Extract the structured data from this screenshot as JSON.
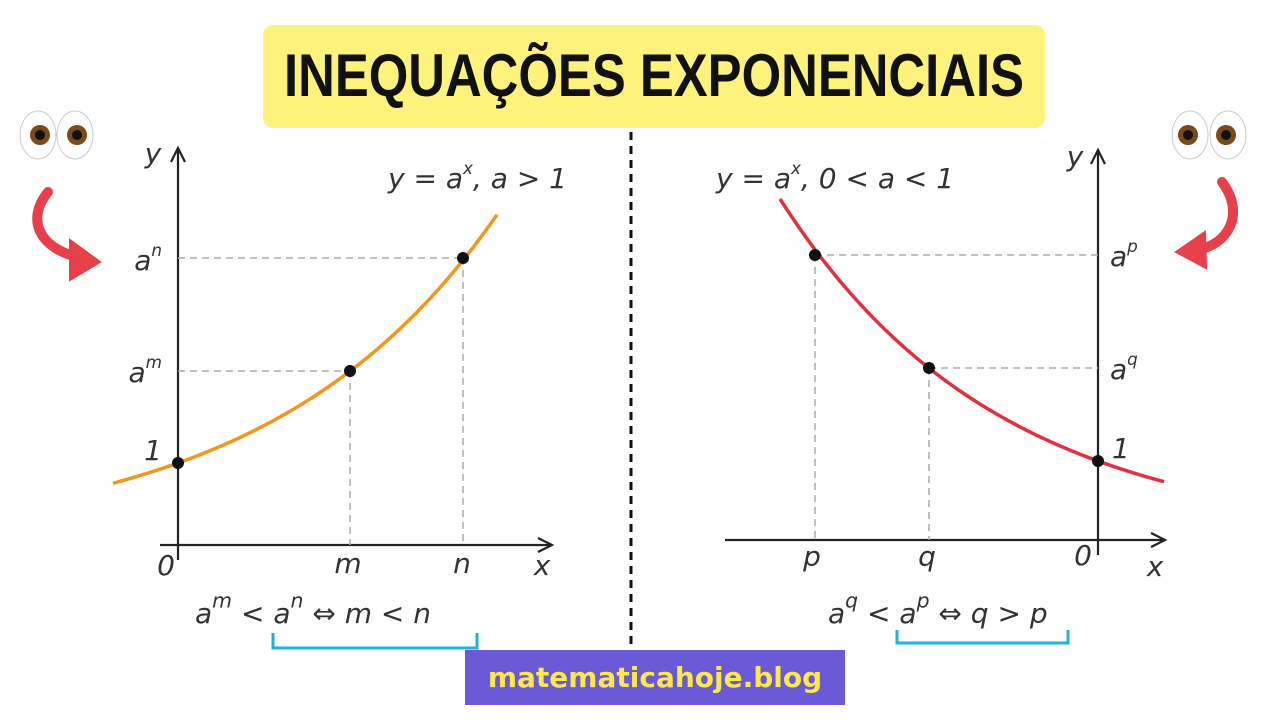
{
  "title": "INEQUAÇÕES EXPONENCIAIS",
  "left_graph": {
    "y_axis": "y",
    "x_axis": "x",
    "curve_label": [
      "y = ",
      {
        "base": "a",
        "exp": "x"
      },
      ", a > 1"
    ],
    "y_labels": [
      {
        "base": "a",
        "exp": "n"
      },
      {
        "base": "a",
        "exp": "m"
      },
      "1"
    ],
    "origin": "0",
    "x_labels": [
      "m",
      "n"
    ],
    "formula": [
      {
        "base": "a",
        "exp": "m"
      },
      " < ",
      {
        "base": "a",
        "exp": "n"
      },
      " ⇔ ",
      "m",
      " < ",
      "n"
    ]
  },
  "right_graph": {
    "y_axis": "y",
    "x_axis": "x",
    "curve_label": [
      "y = ",
      {
        "base": "a",
        "exp": "x"
      },
      ", 0 < a < 1"
    ],
    "y_labels": [
      {
        "base": "a",
        "exp": "p"
      },
      {
        "base": "a",
        "exp": "q"
      },
      "1"
    ],
    "origin": "0",
    "x_labels": [
      "p",
      "q"
    ],
    "formula": [
      {
        "base": "a",
        "exp": "q"
      },
      " < ",
      {
        "base": "a",
        "exp": "p"
      },
      " ⇔ ",
      "q",
      " > ",
      "p"
    ]
  },
  "footer": "matematicahoje.blog"
}
